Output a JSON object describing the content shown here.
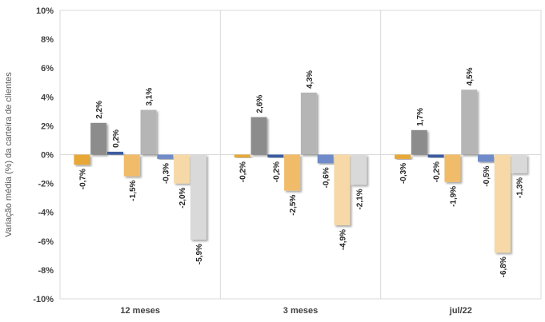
{
  "chart_data": {
    "type": "bar",
    "ylabel": "Variação média (%) da carteira de clientes",
    "ylim": [
      -10,
      10
    ],
    "yticks": [
      -10,
      -8,
      -6,
      -4,
      -2,
      0,
      2,
      4,
      6,
      8,
      10
    ],
    "ytick_labels": [
      "-10%",
      "-8%",
      "-6%",
      "-4%",
      "-2%",
      "0%",
      "2%",
      "4%",
      "6%",
      "8%",
      "10%"
    ],
    "categories": [
      "12 meses",
      "3 meses",
      "jul/22"
    ],
    "grid": false,
    "legend": "none",
    "series": [
      {
        "color": "#E8A838",
        "values": [
          -0.7,
          -0.2,
          -0.3
        ],
        "labels": [
          "-0,7%",
          "-0,2%",
          "-0,3%"
        ]
      },
      {
        "color": "#8C8C8C",
        "values": [
          2.2,
          2.6,
          1.7
        ],
        "labels": [
          "2,2%",
          "2,6%",
          "1,7%"
        ]
      },
      {
        "color": "#3A5BA0",
        "values": [
          0.2,
          -0.2,
          -0.2
        ],
        "labels": [
          "0,2%",
          "-0,2%",
          "-0,2%"
        ]
      },
      {
        "color": "#F0BC6A",
        "values": [
          -1.5,
          -2.5,
          -1.9
        ],
        "labels": [
          "-1,5%",
          "-2,5%",
          "-1,9%"
        ]
      },
      {
        "color": "#B5B5B5",
        "values": [
          3.1,
          4.3,
          4.5
        ],
        "labels": [
          "3,1%",
          "4,3%",
          "4,5%"
        ]
      },
      {
        "color": "#6F8BC9",
        "values": [
          -0.3,
          -0.6,
          -0.5
        ],
        "labels": [
          "-0,3%",
          "-0,6%",
          "-0,5%"
        ]
      },
      {
        "color": "#F6D9A6",
        "values": [
          -2.0,
          -4.9,
          -6.8
        ],
        "labels": [
          "-2,0%",
          "-4,9%",
          "-6,8%"
        ]
      },
      {
        "color": "#D9D9D9",
        "values": [
          -5.9,
          -2.1,
          -1.3
        ],
        "labels": [
          "-5,9%",
          "-2,1%",
          "-1,3%"
        ]
      }
    ]
  }
}
